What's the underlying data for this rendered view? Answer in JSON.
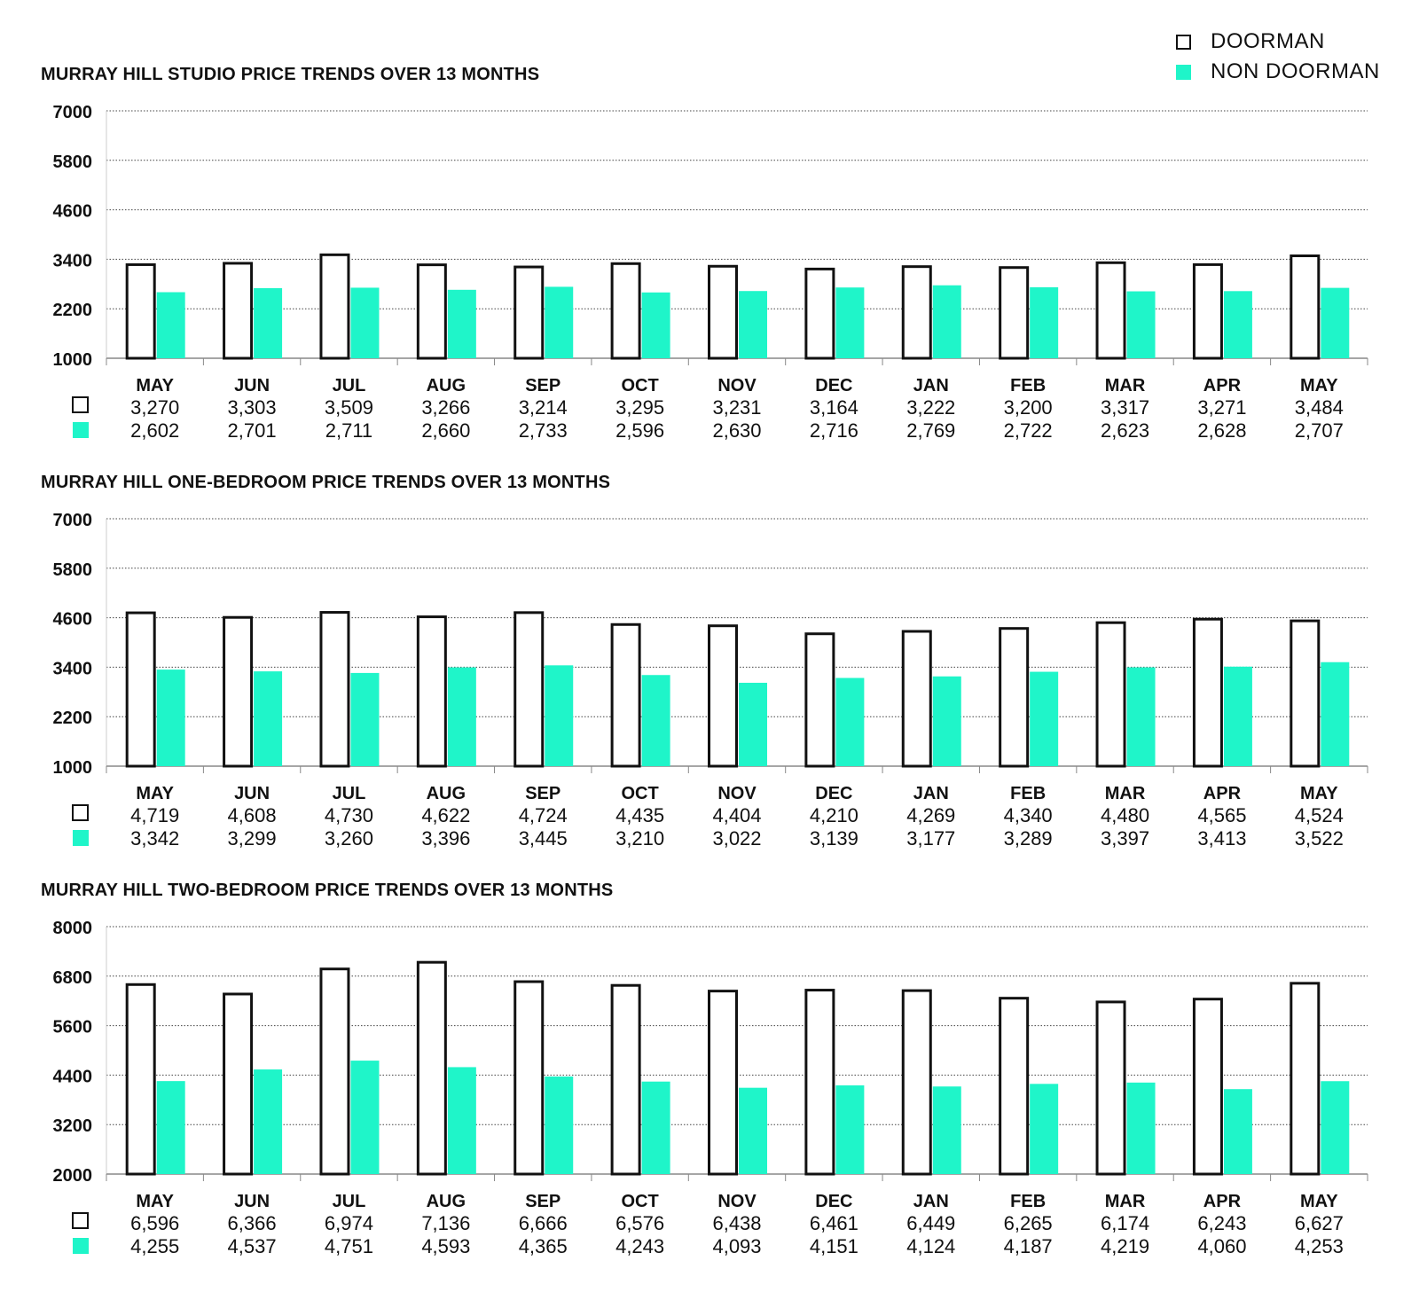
{
  "legend": {
    "doorman": "DOORMAN",
    "non_doorman": "NON DOORMAN"
  },
  "colors": {
    "doorman_fill": "#ffffff",
    "doorman_stroke": "#111111",
    "non_doorman_fill": "#1ff5c9",
    "text": "#111111",
    "grid": "#444444"
  },
  "chart_data": [
    {
      "type": "bar",
      "title": "MURRAY HILL STUDIO PRICE TRENDS OVER 13 MONTHS",
      "categories": [
        "MAY",
        "JUN",
        "JUL",
        "AUG",
        "SEP",
        "OCT",
        "NOV",
        "DEC",
        "JAN",
        "FEB",
        "MAR",
        "APR",
        "MAY"
      ],
      "yticks": [
        1000,
        2200,
        3400,
        4600,
        5800,
        7000
      ],
      "ylim": [
        1000,
        7000
      ],
      "grid": true,
      "legend_position": "top-right",
      "series": [
        {
          "name": "DOORMAN",
          "values": [
            3270,
            3303,
            3509,
            3266,
            3214,
            3295,
            3231,
            3164,
            3222,
            3200,
            3317,
            3271,
            3484
          ],
          "labels": [
            "3,270",
            "3,303",
            "3,509",
            "3,266",
            "3,214",
            "3,295",
            "3,231",
            "3,164",
            "3,222",
            "3,200",
            "3,317",
            "3,271",
            "3,484"
          ]
        },
        {
          "name": "NON DOORMAN",
          "values": [
            2602,
            2701,
            2711,
            2660,
            2733,
            2596,
            2630,
            2716,
            2769,
            2722,
            2623,
            2628,
            2707
          ],
          "labels": [
            "2,602",
            "2,701",
            "2,711",
            "2,660",
            "2,733",
            "2,596",
            "2,630",
            "2,716",
            "2,769",
            "2,722",
            "2,623",
            "2,628",
            "2,707"
          ]
        }
      ]
    },
    {
      "type": "bar",
      "title": "MURRAY HILL ONE-BEDROOM PRICE TRENDS OVER 13 MONTHS",
      "categories": [
        "MAY",
        "JUN",
        "JUL",
        "AUG",
        "SEP",
        "OCT",
        "NOV",
        "DEC",
        "JAN",
        "FEB",
        "MAR",
        "APR",
        "MAY"
      ],
      "yticks": [
        1000,
        2200,
        3400,
        4600,
        5800,
        7000
      ],
      "ylim": [
        1000,
        7000
      ],
      "grid": true,
      "legend_position": "top-right",
      "series": [
        {
          "name": "DOORMAN",
          "values": [
            4719,
            4608,
            4730,
            4622,
            4724,
            4435,
            4404,
            4210,
            4269,
            4340,
            4480,
            4565,
            4524
          ],
          "labels": [
            "4,719",
            "4,608",
            "4,730",
            "4,622",
            "4,724",
            "4,435",
            "4,404",
            "4,210",
            "4,269",
            "4,340",
            "4,480",
            "4,565",
            "4,524"
          ]
        },
        {
          "name": "NON DOORMAN",
          "values": [
            3342,
            3299,
            3260,
            3396,
            3445,
            3210,
            3022,
            3139,
            3177,
            3289,
            3397,
            3413,
            3522
          ],
          "labels": [
            "3,342",
            "3,299",
            "3,260",
            "3,396",
            "3,445",
            "3,210",
            "3,022",
            "3,139",
            "3,177",
            "3,289",
            "3,397",
            "3,413",
            "3,522"
          ]
        }
      ]
    },
    {
      "type": "bar",
      "title": "MURRAY HILL TWO-BEDROOM PRICE TRENDS OVER 13 MONTHS",
      "categories": [
        "MAY",
        "JUN",
        "JUL",
        "AUG",
        "SEP",
        "OCT",
        "NOV",
        "DEC",
        "JAN",
        "FEB",
        "MAR",
        "APR",
        "MAY"
      ],
      "yticks": [
        2000,
        3200,
        4400,
        5600,
        6800,
        8000
      ],
      "ylim": [
        2000,
        8000
      ],
      "grid": true,
      "legend_position": "top-right",
      "series": [
        {
          "name": "DOORMAN",
          "values": [
            6596,
            6366,
            6974,
            7136,
            6666,
            6576,
            6438,
            6461,
            6449,
            6265,
            6174,
            6243,
            6627
          ],
          "labels": [
            "6,596",
            "6,366",
            "6,974",
            "7,136",
            "6,666",
            "6,576",
            "6,438",
            "6,461",
            "6,449",
            "6,265",
            "6,174",
            "6,243",
            "6,627"
          ]
        },
        {
          "name": "NON DOORMAN",
          "values": [
            4255,
            4537,
            4751,
            4593,
            4365,
            4243,
            4093,
            4151,
            4124,
            4187,
            4219,
            4060,
            4253
          ],
          "labels": [
            "4,255",
            "4,537",
            "4,751",
            "4,593",
            "4,365",
            "4,243",
            "4,093",
            "4,151",
            "4,124",
            "4,187",
            "4,219",
            "4,060",
            "4,253"
          ]
        }
      ]
    }
  ]
}
